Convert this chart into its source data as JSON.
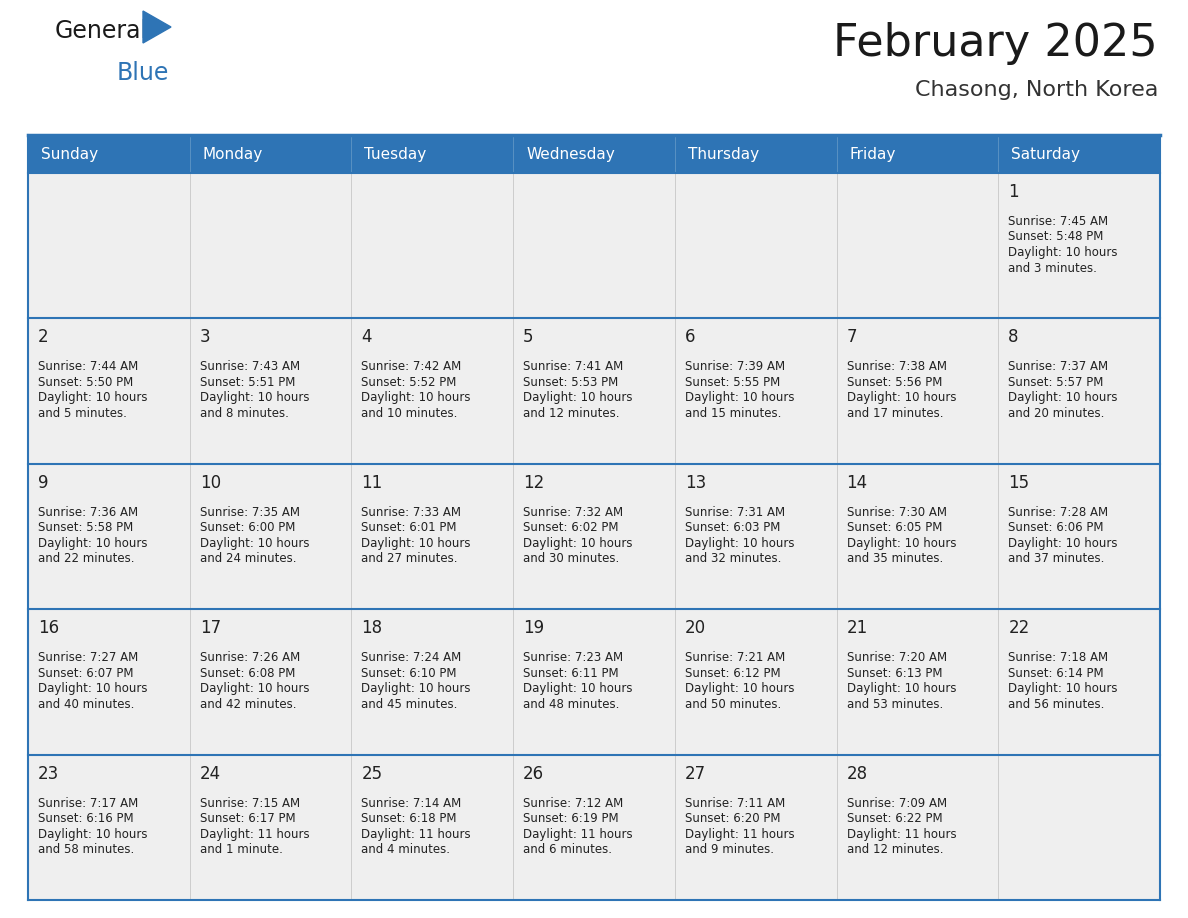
{
  "title": "February 2025",
  "subtitle": "Chasong, North Korea",
  "days_of_week": [
    "Sunday",
    "Monday",
    "Tuesday",
    "Wednesday",
    "Thursday",
    "Friday",
    "Saturday"
  ],
  "header_bg": "#2E74B5",
  "header_text_color": "#FFFFFF",
  "cell_bg": "#EFEFEF",
  "cell_bg_white": "#FFFFFF",
  "separator_color": "#2E74B5",
  "text_color": "#222222",
  "day_num_color": "#222222",
  "grid_line_color": "#CCCCCC",
  "calendar_data": [
    [
      null,
      null,
      null,
      null,
      null,
      null,
      {
        "day": 1,
        "sunrise": "7:45 AM",
        "sunset": "5:48 PM",
        "daylight": "10 hours and 3 minutes."
      }
    ],
    [
      {
        "day": 2,
        "sunrise": "7:44 AM",
        "sunset": "5:50 PM",
        "daylight": "10 hours and 5 minutes."
      },
      {
        "day": 3,
        "sunrise": "7:43 AM",
        "sunset": "5:51 PM",
        "daylight": "10 hours and 8 minutes."
      },
      {
        "day": 4,
        "sunrise": "7:42 AM",
        "sunset": "5:52 PM",
        "daylight": "10 hours and 10 minutes."
      },
      {
        "day": 5,
        "sunrise": "7:41 AM",
        "sunset": "5:53 PM",
        "daylight": "10 hours and 12 minutes."
      },
      {
        "day": 6,
        "sunrise": "7:39 AM",
        "sunset": "5:55 PM",
        "daylight": "10 hours and 15 minutes."
      },
      {
        "day": 7,
        "sunrise": "7:38 AM",
        "sunset": "5:56 PM",
        "daylight": "10 hours and 17 minutes."
      },
      {
        "day": 8,
        "sunrise": "7:37 AM",
        "sunset": "5:57 PM",
        "daylight": "10 hours and 20 minutes."
      }
    ],
    [
      {
        "day": 9,
        "sunrise": "7:36 AM",
        "sunset": "5:58 PM",
        "daylight": "10 hours and 22 minutes."
      },
      {
        "day": 10,
        "sunrise": "7:35 AM",
        "sunset": "6:00 PM",
        "daylight": "10 hours and 24 minutes."
      },
      {
        "day": 11,
        "sunrise": "7:33 AM",
        "sunset": "6:01 PM",
        "daylight": "10 hours and 27 minutes."
      },
      {
        "day": 12,
        "sunrise": "7:32 AM",
        "sunset": "6:02 PM",
        "daylight": "10 hours and 30 minutes."
      },
      {
        "day": 13,
        "sunrise": "7:31 AM",
        "sunset": "6:03 PM",
        "daylight": "10 hours and 32 minutes."
      },
      {
        "day": 14,
        "sunrise": "7:30 AM",
        "sunset": "6:05 PM",
        "daylight": "10 hours and 35 minutes."
      },
      {
        "day": 15,
        "sunrise": "7:28 AM",
        "sunset": "6:06 PM",
        "daylight": "10 hours and 37 minutes."
      }
    ],
    [
      {
        "day": 16,
        "sunrise": "7:27 AM",
        "sunset": "6:07 PM",
        "daylight": "10 hours and 40 minutes."
      },
      {
        "day": 17,
        "sunrise": "7:26 AM",
        "sunset": "6:08 PM",
        "daylight": "10 hours and 42 minutes."
      },
      {
        "day": 18,
        "sunrise": "7:24 AM",
        "sunset": "6:10 PM",
        "daylight": "10 hours and 45 minutes."
      },
      {
        "day": 19,
        "sunrise": "7:23 AM",
        "sunset": "6:11 PM",
        "daylight": "10 hours and 48 minutes."
      },
      {
        "day": 20,
        "sunrise": "7:21 AM",
        "sunset": "6:12 PM",
        "daylight": "10 hours and 50 minutes."
      },
      {
        "day": 21,
        "sunrise": "7:20 AM",
        "sunset": "6:13 PM",
        "daylight": "10 hours and 53 minutes."
      },
      {
        "day": 22,
        "sunrise": "7:18 AM",
        "sunset": "6:14 PM",
        "daylight": "10 hours and 56 minutes."
      }
    ],
    [
      {
        "day": 23,
        "sunrise": "7:17 AM",
        "sunset": "6:16 PM",
        "daylight": "10 hours and 58 minutes."
      },
      {
        "day": 24,
        "sunrise": "7:15 AM",
        "sunset": "6:17 PM",
        "daylight": "11 hours and 1 minute."
      },
      {
        "day": 25,
        "sunrise": "7:14 AM",
        "sunset": "6:18 PM",
        "daylight": "11 hours and 4 minutes."
      },
      {
        "day": 26,
        "sunrise": "7:12 AM",
        "sunset": "6:19 PM",
        "daylight": "11 hours and 6 minutes."
      },
      {
        "day": 27,
        "sunrise": "7:11 AM",
        "sunset": "6:20 PM",
        "daylight": "11 hours and 9 minutes."
      },
      {
        "day": 28,
        "sunrise": "7:09 AM",
        "sunset": "6:22 PM",
        "daylight": "11 hours and 12 minutes."
      },
      null
    ]
  ],
  "figure_width": 11.88,
  "figure_height": 9.18
}
